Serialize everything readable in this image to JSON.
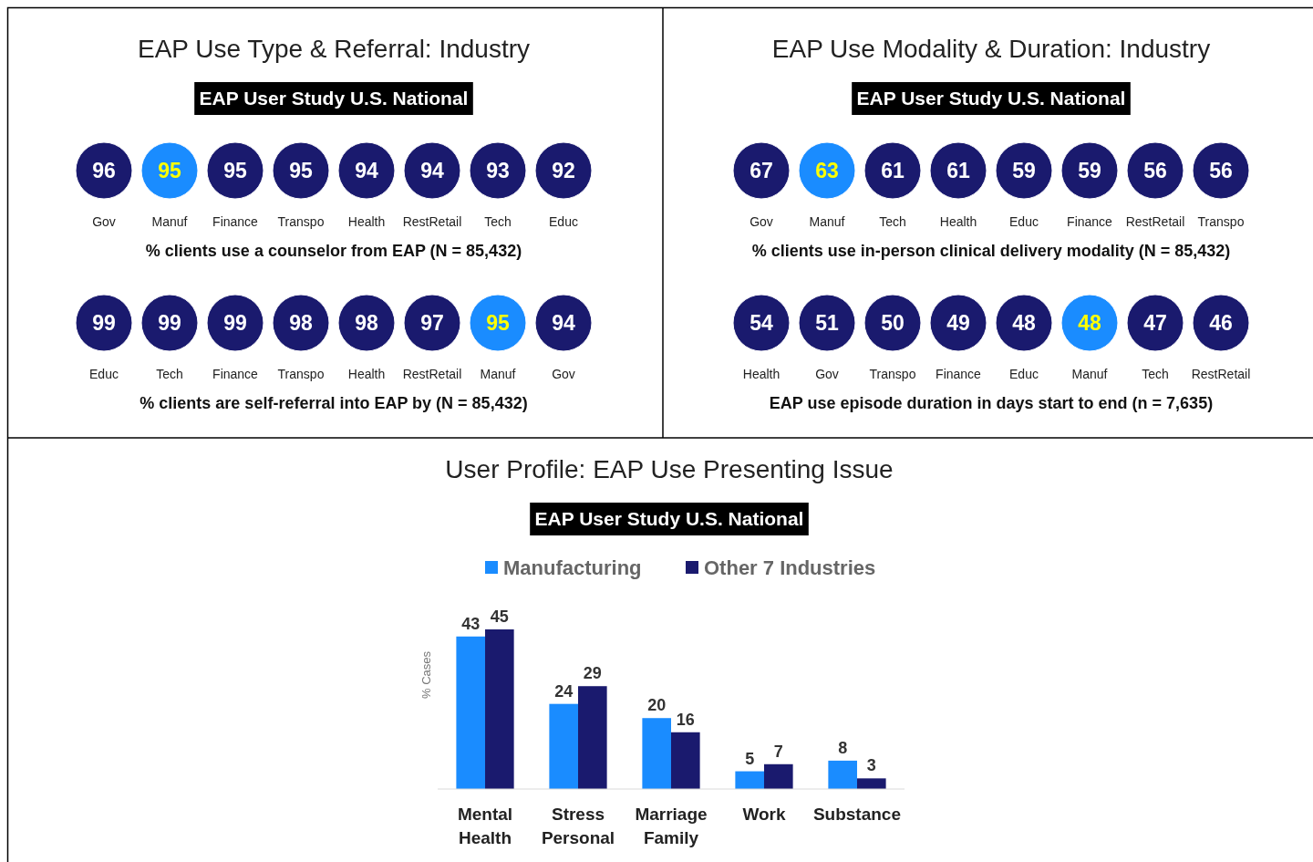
{
  "chart_data": [
    {
      "type": "other",
      "title": "EAP Use Type & Referral: Industry",
      "subtitle": "EAP User Study U.S. National",
      "categories": [
        "Gov",
        "Manuf",
        "Finance",
        "Transpo",
        "Health",
        "RestRetail",
        "Tech",
        "Educ"
      ],
      "values": [
        96,
        95,
        95,
        95,
        94,
        94,
        93,
        92
      ],
      "colors": [
        "#1a1a6e",
        "#1a8cff",
        "#1a1a6e",
        "#1a1a6e",
        "#1a1a6e",
        "#1a1a6e",
        "#1a1a6e",
        "#1a1a6e"
      ],
      "xlabel": "% clients use a counselor from EAP (N = 85,432)",
      "data_labels": true
    },
    {
      "type": "other",
      "categories": [
        "Educ",
        "Tech",
        "Finance",
        "Transpo",
        "Health",
        "RestRetail",
        "Manuf",
        "Gov"
      ],
      "values": [
        99,
        99,
        99,
        98,
        98,
        97,
        95,
        94
      ],
      "colors": [
        "#1a1a6e",
        "#1a1a6e",
        "#1a1a6e",
        "#1a1a6e",
        "#1a1a6e",
        "#1a1a6e",
        "#1a8cff",
        "#1a1a6e"
      ],
      "xlabel": "% clients are self-referral into EAP by (N = 85,432)",
      "data_labels": true
    },
    {
      "type": "other",
      "title": "EAP Use Modality & Duration: Industry",
      "subtitle": "EAP User Study U.S. National",
      "categories": [
        "Gov",
        "Manuf",
        "Tech",
        "Health",
        "Educ",
        "Finance",
        "RestRetail",
        "Transpo"
      ],
      "values": [
        67,
        63,
        61,
        61,
        59,
        59,
        56,
        56
      ],
      "colors": [
        "#1a1a6e",
        "#1a8cff",
        "#1a1a6e",
        "#1a1a6e",
        "#1a1a6e",
        "#1a1a6e",
        "#1a1a6e",
        "#1a1a6e"
      ],
      "xlabel": "% clients use in-person clinical delivery modality (N = 85,432)",
      "data_labels": true
    },
    {
      "type": "other",
      "categories": [
        "Health",
        "Gov",
        "Transpo",
        "Finance",
        "Educ",
        "Manuf",
        "Tech",
        "RestRetail"
      ],
      "values": [
        54,
        51,
        50,
        49,
        48,
        48,
        47,
        46
      ],
      "colors": [
        "#1a1a6e",
        "#1a1a6e",
        "#1a1a6e",
        "#1a1a6e",
        "#1a1a6e",
        "#1a8cff",
        "#1a1a6e",
        "#1a1a6e"
      ],
      "xlabel": "EAP use episode duration in days start to end (n = 7,635)",
      "data_labels": true
    },
    {
      "type": "bar",
      "title": "User Profile: EAP Use Presenting Issue",
      "subtitle": "EAP User Study U.S. National",
      "ylabel": "% Cases",
      "categories": [
        "Mental Health",
        "Stress Personal",
        "Marriage Family",
        "Work",
        "Substance"
      ],
      "series": [
        {
          "name": "Manufacturing",
          "color": "#1a8cff",
          "values": [
            43,
            24,
            20,
            5,
            8
          ]
        },
        {
          "name": "Other 7 Industries",
          "color": "#1a1a6e",
          "values": [
            45,
            29,
            16,
            7,
            3
          ]
        }
      ],
      "data_labels": true,
      "legend": "top"
    }
  ]
}
